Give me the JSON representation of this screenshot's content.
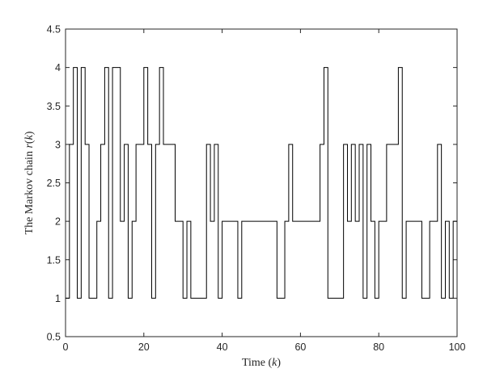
{
  "chart_data": {
    "type": "line",
    "step": true,
    "xlabel": "Time (k)",
    "ylabel": "The Markov chain r(k)",
    "xlabel_parts": {
      "text": "Time (",
      "var": "k",
      "close": ")"
    },
    "ylabel_parts": {
      "text": "The Markov chain ",
      "var": "r",
      "open": "(",
      "var2": "k",
      "close": ")"
    },
    "xlim": [
      0,
      100
    ],
    "ylim": [
      0.5,
      4.5
    ],
    "xticks": [
      0,
      20,
      40,
      60,
      80,
      100
    ],
    "yticks": [
      0.5,
      1,
      1.5,
      2,
      2.5,
      3,
      3.5,
      4,
      4.5
    ],
    "xtick_labels": [
      "0",
      "20",
      "40",
      "60",
      "80",
      "100"
    ],
    "ytick_labels": [
      "0.5",
      "1",
      "1.5",
      "2",
      "2.5",
      "3",
      "3.5",
      "4",
      "4.5"
    ],
    "line_color": "#000000",
    "grid": false,
    "series": [
      {
        "x": [
          0,
          1,
          2,
          3,
          4,
          5,
          6,
          7,
          8,
          9,
          10,
          11,
          12,
          13,
          14,
          15,
          16,
          17,
          18,
          19,
          20,
          21,
          22,
          23,
          24,
          25,
          26,
          27,
          28,
          29,
          30,
          31,
          32,
          33,
          34,
          35,
          36,
          37,
          38,
          39,
          40,
          41,
          42,
          43,
          44,
          45,
          46,
          47,
          48,
          49,
          50,
          51,
          52,
          53,
          54,
          55,
          56,
          57,
          58,
          59,
          60,
          61,
          62,
          63,
          64,
          65,
          66,
          67,
          68,
          69,
          70,
          71,
          72,
          73,
          74,
          75,
          76,
          77,
          78,
          79,
          80,
          81,
          82,
          83,
          84,
          85,
          86,
          87,
          88,
          89,
          90,
          91,
          92,
          93,
          94,
          95,
          96,
          97,
          98,
          99
        ],
        "y": [
          1,
          3,
          4,
          1,
          4,
          3,
          1,
          1,
          2,
          3,
          4,
          1,
          4,
          4,
          2,
          3,
          1,
          2,
          3,
          3,
          4,
          3,
          1,
          3,
          4,
          3,
          3,
          3,
          2,
          2,
          1,
          2,
          1,
          1,
          1,
          1,
          3,
          2,
          3,
          1,
          2,
          2,
          2,
          2,
          1,
          2,
          2,
          2,
          2,
          2,
          2,
          2,
          2,
          2,
          1,
          1,
          2,
          3,
          2,
          2,
          2,
          2,
          2,
          2,
          2,
          3,
          4,
          1,
          1,
          1,
          1,
          3,
          2,
          3,
          2,
          3,
          1,
          3,
          2,
          1,
          2,
          2,
          3,
          3,
          3,
          4,
          1,
          2,
          2,
          2,
          2,
          1,
          1,
          2,
          2,
          3,
          1,
          2,
          1,
          2
        ]
      }
    ]
  }
}
